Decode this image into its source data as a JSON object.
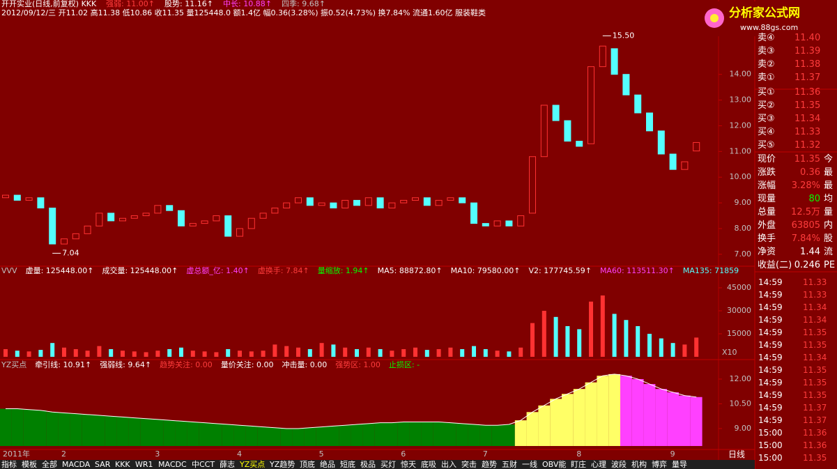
{
  "header": {
    "line1": [
      {
        "text": "开开实业(日线,前复权) KKK",
        "color": "#ffffff"
      },
      {
        "text": "强弱: 11.00↑",
        "color": "#ff3c3c"
      },
      {
        "text": "股势: 11.16↑",
        "color": "#ffffff"
      },
      {
        "text": "中长: 10.88↑",
        "color": "#ff40ff"
      },
      {
        "text": "四季: 9.68↑",
        "color": "#c0c0c0"
      }
    ],
    "line2": "2012/09/12/三 开11.02 高11.38 低10.86 收11.35 量125448.0 额1.4亿 幅0.36(3.28%) 振0.52(4.73%) 换7.84% 流通1.60亿 服装鞋类"
  },
  "logo": {
    "title": "分析家公式网",
    "url": "www.88gs.com"
  },
  "chart_data": [
    {
      "type": "candlestick",
      "categories": [
        "2011年",
        null,
        null,
        null,
        null,
        "2",
        null,
        null,
        null,
        null,
        null,
        null,
        null,
        "3",
        null,
        null,
        null,
        null,
        null,
        null,
        "4",
        null,
        null,
        null,
        null,
        null,
        null,
        "5",
        null,
        null,
        null,
        null,
        null,
        null,
        "6",
        null,
        null,
        null,
        null,
        null,
        null,
        "7",
        null,
        null,
        null,
        null,
        null,
        null,
        null,
        "8",
        null,
        null,
        null,
        null,
        null,
        null,
        null,
        "9",
        null,
        null
      ],
      "open": [
        9.2,
        9.3,
        9.1,
        9.2,
        8.8,
        7.4,
        7.6,
        7.8,
        8.1,
        8.6,
        8.3,
        8.4,
        8.5,
        8.6,
        8.9,
        8.7,
        8.1,
        8.2,
        8.3,
        8.5,
        7.7,
        8.0,
        8.4,
        8.6,
        8.8,
        9.0,
        9.2,
        8.9,
        9.0,
        8.8,
        9.1,
        8.9,
        9.2,
        8.8,
        9.0,
        9.1,
        9.2,
        8.9,
        9.1,
        9.2,
        9.0,
        8.2,
        8.1,
        8.3,
        8.1,
        8.6,
        10.8,
        12.8,
        12.2,
        11.4,
        11.3,
        14.3,
        15.0,
        14.0,
        13.2,
        12.5,
        11.8,
        10.9,
        10.3,
        11.02
      ],
      "close": [
        9.3,
        9.1,
        9.2,
        8.8,
        7.4,
        7.6,
        7.8,
        8.1,
        8.6,
        8.3,
        8.4,
        8.5,
        8.6,
        8.9,
        8.7,
        8.1,
        8.2,
        8.3,
        8.5,
        7.7,
        8.0,
        8.4,
        8.6,
        8.8,
        9.0,
        9.2,
        8.9,
        9.0,
        8.8,
        9.1,
        8.9,
        9.2,
        8.8,
        9.0,
        9.1,
        9.2,
        8.9,
        9.1,
        9.2,
        9.0,
        8.2,
        8.1,
        8.3,
        8.1,
        8.5,
        10.8,
        12.8,
        12.2,
        11.4,
        11.2,
        14.3,
        15.1,
        14.0,
        13.2,
        12.5,
        11.8,
        10.9,
        10.3,
        10.6,
        11.35
      ],
      "annotations": [
        {
          "value": 15.5,
          "label": "15.50"
        },
        {
          "value": 7.04,
          "label": "7.04"
        }
      ],
      "ylim": [
        6.59,
        16.08
      ],
      "yticks": [
        {
          "value": 14,
          "label": "14.00"
        },
        {
          "value": 13,
          "label": "13.00"
        },
        {
          "value": 12,
          "label": "12.00"
        },
        {
          "value": 11,
          "label": "11.00"
        },
        {
          "value": 10,
          "label": "10.00"
        },
        {
          "value": 9,
          "label": "9.00"
        },
        {
          "value": 8,
          "label": "8.00"
        },
        {
          "value": 7,
          "label": "7.00"
        }
      ],
      "up_color": "#ff3232",
      "down_color": "#54ffff"
    },
    {
      "type": "bar",
      "header": [
        {
          "text": "VVV",
          "color": "#c0c0c0"
        },
        {
          "text": "虚量: 125448.00↑",
          "color": "#ffffff"
        },
        {
          "text": "成交量: 125448.00↑",
          "color": "#ffffff"
        },
        {
          "text": "虚总额_亿: 1.40↑",
          "color": "#ff40ff"
        },
        {
          "text": "虚换手: 7.84↑",
          "color": "#ff3c3c"
        },
        {
          "text": "量缩放: 1.94↑",
          "color": "#00ff00"
        },
        {
          "text": "MA5: 88872.80↑",
          "color": "#ffffff"
        },
        {
          "text": "MA10: 79580.00↑",
          "color": "#ffffff"
        },
        {
          "text": "V2: 177745.59↑",
          "color": "#ffffff"
        },
        {
          "text": "MA60: 113511.30↑",
          "color": "#ff40ff"
        },
        {
          "text": "MA135: 71859",
          "color": "#54ffff"
        }
      ],
      "values": [
        5000,
        4000,
        3500,
        4500,
        9000,
        6000,
        5000,
        4000,
        7000,
        5000,
        4000,
        3500,
        3000,
        4000,
        5000,
        6000,
        4000,
        3500,
        3000,
        5000,
        4000,
        3500,
        4000,
        8000,
        7000,
        6000,
        5000,
        9000,
        8000,
        6000,
        5000,
        6000,
        5000,
        4000,
        5000,
        6000,
        4500,
        5000,
        6000,
        5000,
        7000,
        5000,
        4000,
        3500,
        6000,
        22000,
        30000,
        26000,
        20000,
        18000,
        36000,
        40000,
        28000,
        24000,
        20000,
        15000,
        12000,
        9000,
        8000,
        12545
      ],
      "unit_label": "X10",
      "ylim": [
        0,
        50900
      ],
      "yticks": [
        45000,
        30000,
        15000
      ]
    },
    {
      "type": "line",
      "header": [
        {
          "text": "YZ买点",
          "color": "#c0c0c0"
        },
        {
          "text": "牵引线: 10.91↑",
          "color": "#ffffff"
        },
        {
          "text": "强弱线: 9.64↑",
          "color": "#ffffff"
        },
        {
          "text": "趋势关注: 0.00",
          "color": "#ff3c3c"
        },
        {
          "text": "量价关注: 0.00",
          "color": "#ffffff"
        },
        {
          "text": "冲击量: 0.00",
          "color": "#ffffff"
        },
        {
          "text": "强势区: 1.00",
          "color": "#ff3c3c"
        },
        {
          "text": "止损区: -",
          "color": "#00ff00"
        }
      ],
      "values": [
        10.2,
        10.2,
        10.15,
        10.1,
        10.0,
        9.95,
        9.9,
        9.85,
        9.8,
        9.75,
        9.7,
        9.65,
        9.6,
        9.55,
        9.5,
        9.45,
        9.4,
        9.35,
        9.3,
        9.25,
        9.2,
        9.15,
        9.1,
        9.05,
        9.0,
        9.0,
        9.05,
        9.1,
        9.15,
        9.2,
        9.25,
        9.3,
        9.35,
        9.35,
        9.4,
        9.4,
        9.4,
        9.4,
        9.35,
        9.3,
        9.25,
        9.2,
        9.2,
        9.25,
        9.5,
        10.0,
        10.4,
        10.8,
        11.1,
        11.4,
        11.8,
        12.2,
        12.3,
        12.2,
        12.0,
        11.7,
        11.4,
        11.2,
        11.0,
        10.91
      ],
      "ylim": [
        7.73,
        12.59
      ],
      "yticks": [
        {
          "value": 12,
          "label": "12.00"
        },
        {
          "value": 10.5,
          "label": "10.50"
        },
        {
          "value": 9,
          "label": "9.00"
        }
      ],
      "colors": {
        "weak": "#008000",
        "rising": "#ffff66",
        "falling": "#ff40ff"
      }
    }
  ],
  "order_book": [
    [
      "卖④",
      "11.40"
    ],
    [
      "卖③",
      "11.39"
    ],
    [
      "卖②",
      "11.38"
    ],
    [
      "卖①",
      "11.37"
    ],
    [
      "买①",
      "11.36"
    ],
    [
      "买②",
      "11.35"
    ],
    [
      "买③",
      "11.34"
    ],
    [
      "买④",
      "11.33"
    ],
    [
      "买⑤",
      "11.32"
    ]
  ],
  "stats": [
    [
      "现价",
      "11.35",
      "今"
    ],
    [
      "涨跌",
      "0.36",
      "最"
    ],
    [
      "涨幅",
      "3.28%",
      "最"
    ],
    [
      "现量",
      "80",
      "均"
    ],
    [
      "总量",
      "12.5万",
      "量"
    ],
    [
      "外盘",
      "63805",
      "内"
    ],
    [
      "换手",
      "7.84%",
      "股"
    ],
    [
      "净资",
      "1.44",
      "流"
    ],
    [
      "收益(二)",
      "0.246",
      "PE"
    ]
  ],
  "ticks_table": [
    [
      "14:59",
      "11.33"
    ],
    [
      "14:59",
      "11.33"
    ],
    [
      "14:59",
      "11.34"
    ],
    [
      "14:59",
      "11.34"
    ],
    [
      "14:59",
      "11.35"
    ],
    [
      "14:59",
      "11.35"
    ],
    [
      "14:59",
      "11.34"
    ],
    [
      "14:59",
      "11.35"
    ],
    [
      "14:59",
      "11.35"
    ],
    [
      "14:59",
      "11.35"
    ],
    [
      "14:59",
      "11.37"
    ],
    [
      "14:59",
      "11.37"
    ],
    [
      "15:00",
      "11.36"
    ],
    [
      "15:00",
      "11.36"
    ],
    [
      "15:00",
      "11.35"
    ]
  ],
  "period_label": "日线",
  "tabs": [
    "指标",
    "模板",
    "全部",
    "MACDA",
    "SAR",
    "KKK",
    "WR1",
    "MACDC",
    "中CCT",
    "薛志",
    "YZ买点",
    "YZ趋势",
    "顶底",
    "绝品",
    "短底",
    "极品",
    "买灯",
    "惊天",
    "底吸",
    "出入",
    "突击",
    "趋势",
    "五财",
    "一线",
    "OBV能",
    "盯庄",
    "心理",
    "波段",
    "机构",
    "博弈",
    "量导"
  ]
}
